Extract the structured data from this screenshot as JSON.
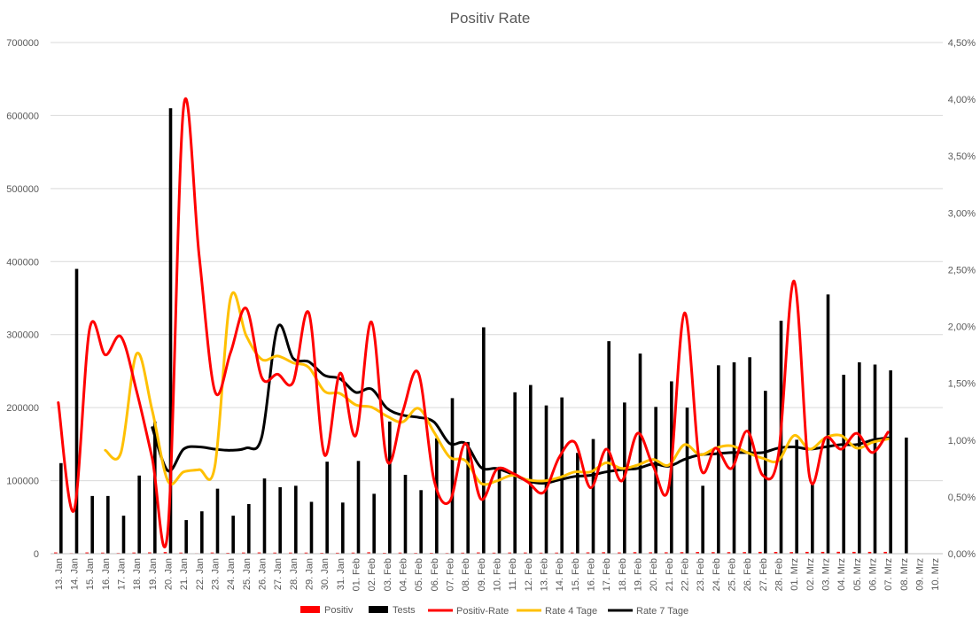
{
  "chart_data": {
    "type": "bar",
    "title": "Positiv Rate",
    "categories": [
      "13. Jan",
      "14. Jan",
      "15. Jan",
      "16. Jan",
      "17. Jan",
      "18. Jan",
      "19. Jan",
      "20. Jan",
      "21. Jan",
      "22. Jan",
      "23. Jan",
      "24. Jan",
      "25. Jan",
      "26. Jan",
      "27. Jan",
      "28. Jan",
      "29. Jan",
      "30. Jan",
      "31. Jan",
      "01. Feb",
      "02. Feb",
      "03. Feb",
      "04. Feb",
      "05. Feb",
      "06. Feb",
      "07. Feb",
      "08. Feb",
      "09. Feb",
      "10. Feb",
      "11. Feb",
      "12. Feb",
      "13. Feb",
      "14. Feb",
      "15. Feb",
      "16. Feb",
      "17. Feb",
      "18. Feb",
      "19. Feb",
      "20. Feb",
      "21. Feb",
      "22. Feb",
      "23. Feb",
      "24. Feb",
      "25. Feb",
      "26. Feb",
      "27. Feb",
      "28. Feb",
      "01. Mrz",
      "02. Mrz",
      "03. Mrz",
      "04. Mrz",
      "05. Mrz",
      "06. Mrz",
      "07. Mrz",
      "08. Mrz",
      "09. Mrz",
      "10. Mrz"
    ],
    "y_left": {
      "min": 0,
      "max": 700000,
      "ticks": [
        "0",
        "100000",
        "200000",
        "300000",
        "400000",
        "500000",
        "600000",
        "700000"
      ]
    },
    "y_right": {
      "min": 0,
      "max": 0.045,
      "ticks": [
        "0,00%",
        "0,50%",
        "1,00%",
        "1,50%",
        "2,00%",
        "2,50%",
        "3,00%",
        "3,50%",
        "4,00%",
        "4,50%"
      ]
    },
    "grid": true,
    "legend_position": "bottom",
    "series": [
      {
        "name": "Positiv",
        "kind": "bar",
        "axis": "left",
        "color": "#ff0000",
        "values": [
          1700,
          800,
          1700,
          1500,
          1000,
          1600,
          1800,
          2200,
          1500,
          700,
          1600,
          1200,
          1600,
          1700,
          1500,
          1500,
          1500,
          1200,
          1300,
          1500,
          1900,
          1200,
          1500,
          1100,
          1200,
          1000,
          1400,
          1700,
          1400,
          1600,
          1600,
          1400,
          1500,
          1600,
          1800,
          2000,
          1700,
          2100,
          1900,
          1900,
          2100,
          2300,
          2100,
          2100,
          2200,
          2500,
          2400,
          2200,
          2500,
          2500,
          2600,
          2500,
          2500,
          2500,
          null,
          null,
          null
        ]
      },
      {
        "name": "Tests",
        "kind": "bar",
        "axis": "left",
        "color": "#000000",
        "values": [
          124000,
          390000,
          79000,
          79000,
          52000,
          107000,
          181000,
          610000,
          46000,
          58000,
          89000,
          52000,
          68000,
          103000,
          91000,
          93000,
          71000,
          126000,
          70000,
          127000,
          82000,
          181000,
          108000,
          87000,
          158000,
          213000,
          153000,
          310000,
          119000,
          221000,
          231000,
          203000,
          214000,
          138000,
          157000,
          291000,
          207000,
          274000,
          201000,
          236000,
          200000,
          93000,
          258000,
          262000,
          269000,
          223000,
          319000,
          156000,
          95000,
          355000,
          245000,
          262000,
          259000,
          251000,
          159000,
          null,
          null
        ]
      },
      {
        "name": "Positiv-Rate",
        "kind": "line",
        "axis": "right",
        "color": "#ff0000",
        "values": [
          0.0133,
          0.0038,
          0.0198,
          0.0175,
          0.0191,
          0.0143,
          0.0084,
          0.0021,
          0.0393,
          0.0262,
          0.0143,
          0.0177,
          0.0216,
          0.0155,
          0.0158,
          0.0151,
          0.0212,
          0.0087,
          0.0159,
          0.0104,
          0.0204,
          0.0082,
          0.0125,
          0.0159,
          0.0065,
          0.0046,
          0.0097,
          0.0048,
          0.0074,
          0.0071,
          0.0063,
          0.0054,
          0.0085,
          0.0098,
          0.0058,
          0.0092,
          0.0064,
          0.0106,
          0.0077,
          0.0059,
          0.0212,
          0.0077,
          0.0093,
          0.0075,
          0.0108,
          0.0069,
          0.0087,
          0.024,
          0.0067,
          0.0102,
          0.0092,
          0.0106,
          0.0089,
          0.0107,
          null,
          null,
          null
        ]
      },
      {
        "name": "Rate 4 Tage",
        "kind": "line",
        "axis": "right",
        "color": "#ffc000",
        "values": [
          null,
          null,
          null,
          0.0091,
          0.0089,
          0.0176,
          0.0126,
          0.0064,
          0.0072,
          0.0074,
          0.0077,
          0.0225,
          0.0192,
          0.0171,
          0.0174,
          0.0168,
          0.0164,
          0.0143,
          0.0141,
          0.0131,
          0.0129,
          0.0121,
          0.0116,
          0.0128,
          0.0107,
          0.0085,
          0.0082,
          0.0062,
          0.0064,
          0.0069,
          0.0065,
          0.0064,
          0.0067,
          0.0072,
          0.0072,
          0.008,
          0.0075,
          0.0078,
          0.0083,
          0.0078,
          0.0096,
          0.0087,
          0.0093,
          0.0095,
          0.0089,
          0.0084,
          0.0082,
          0.0104,
          0.0092,
          0.0102,
          0.0104,
          0.0093,
          0.0098,
          0.0101,
          null,
          null,
          null
        ]
      },
      {
        "name": "Rate 7 Tage",
        "kind": "line",
        "axis": "right",
        "color": "#000000",
        "values": [
          null,
          null,
          null,
          null,
          null,
          null,
          0.0111,
          0.0073,
          0.0092,
          0.0094,
          0.0092,
          0.0091,
          0.0093,
          0.0103,
          0.0199,
          0.0172,
          0.0169,
          0.0157,
          0.0154,
          0.0142,
          0.0145,
          0.0128,
          0.0122,
          0.012,
          0.0116,
          0.0097,
          0.0097,
          0.0076,
          0.0075,
          0.007,
          0.0064,
          0.0062,
          0.0065,
          0.0068,
          0.0069,
          0.0072,
          0.0074,
          0.0075,
          0.0079,
          0.0077,
          0.0083,
          0.0087,
          0.0088,
          0.0089,
          0.0089,
          0.0089,
          0.0093,
          0.0094,
          0.0092,
          0.0094,
          0.0096,
          0.0096,
          0.01,
          0.0102,
          null,
          null,
          null
        ]
      }
    ]
  }
}
